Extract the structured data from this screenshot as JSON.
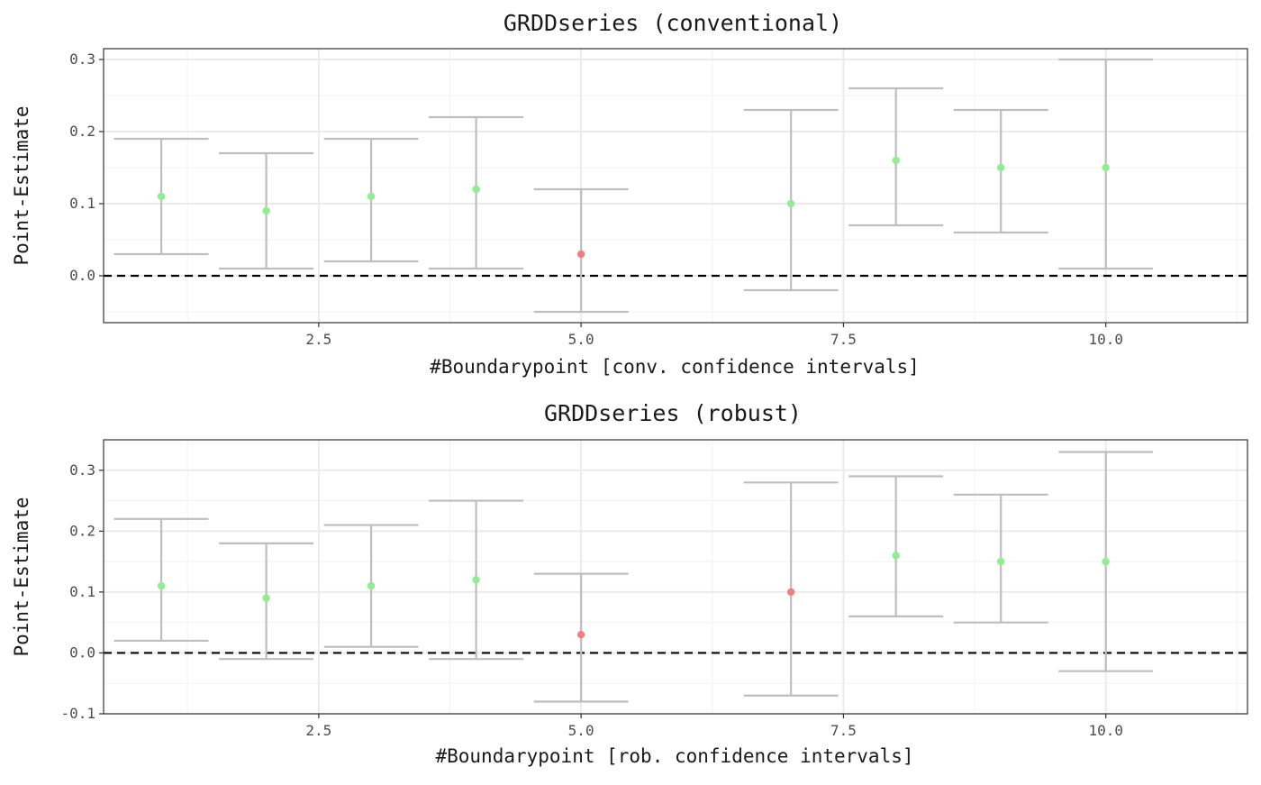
{
  "chart_data": [
    {
      "type": "errorbar",
      "title": "GRDDseries (conventional)",
      "xlabel": "#Boundarypoint [conv. confidence intervals]",
      "ylabel": "Point-Estimate",
      "xlim": [
        0.45,
        11.35
      ],
      "ylim": [
        -0.065,
        0.315
      ],
      "x_ticks": [
        2.5,
        5.0,
        7.5,
        10.0
      ],
      "x_tick_labels": [
        "2.5",
        "5.0",
        "7.5",
        "10.0"
      ],
      "y_ticks": [
        0.0,
        0.1,
        0.2,
        0.3
      ],
      "y_tick_labels": [
        "0.0",
        "0.1",
        "0.2",
        "0.3"
      ],
      "reference_line": 0,
      "grid": true,
      "colors": {
        "significant": "#90ee90",
        "not_significant": "#f08080",
        "errorbar": "#bebebe",
        "reference": "#000000"
      },
      "points": [
        {
          "x": 1,
          "estimate": 0.11,
          "lower": 0.03,
          "upper": 0.19,
          "significant": true
        },
        {
          "x": 2,
          "estimate": 0.09,
          "lower": 0.01,
          "upper": 0.17,
          "significant": true
        },
        {
          "x": 3,
          "estimate": 0.11,
          "lower": 0.02,
          "upper": 0.19,
          "significant": true
        },
        {
          "x": 4,
          "estimate": 0.12,
          "lower": 0.01,
          "upper": 0.22,
          "significant": true
        },
        {
          "x": 5,
          "estimate": 0.03,
          "lower": -0.05,
          "upper": 0.12,
          "significant": false
        },
        {
          "x": 7,
          "estimate": 0.1,
          "lower": -0.02,
          "upper": 0.23,
          "significant": true
        },
        {
          "x": 8,
          "estimate": 0.16,
          "lower": 0.07,
          "upper": 0.26,
          "significant": true
        },
        {
          "x": 9,
          "estimate": 0.15,
          "lower": 0.06,
          "upper": 0.23,
          "significant": true
        },
        {
          "x": 10,
          "estimate": 0.15,
          "lower": 0.01,
          "upper": 0.3,
          "significant": true
        }
      ]
    },
    {
      "type": "errorbar",
      "title": "GRDDseries (robust)",
      "xlabel": "#Boundarypoint [rob. confidence intervals]",
      "ylabel": "Point-Estimate",
      "xlim": [
        0.45,
        11.35
      ],
      "ylim": [
        -0.1,
        0.35
      ],
      "x_ticks": [
        2.5,
        5.0,
        7.5,
        10.0
      ],
      "x_tick_labels": [
        "2.5",
        "5.0",
        "7.5",
        "10.0"
      ],
      "y_ticks": [
        -0.1,
        0.0,
        0.1,
        0.2,
        0.3
      ],
      "y_tick_labels": [
        "-0.1",
        "0.0",
        "0.1",
        "0.2",
        "0.3"
      ],
      "reference_line": 0,
      "grid": true,
      "colors": {
        "significant": "#90ee90",
        "not_significant": "#f08080",
        "errorbar": "#bebebe",
        "reference": "#000000"
      },
      "points": [
        {
          "x": 1,
          "estimate": 0.11,
          "lower": 0.02,
          "upper": 0.22,
          "significant": true
        },
        {
          "x": 2,
          "estimate": 0.09,
          "lower": -0.01,
          "upper": 0.18,
          "significant": true
        },
        {
          "x": 3,
          "estimate": 0.11,
          "lower": 0.01,
          "upper": 0.21,
          "significant": true
        },
        {
          "x": 4,
          "estimate": 0.12,
          "lower": -0.01,
          "upper": 0.25,
          "significant": true
        },
        {
          "x": 5,
          "estimate": 0.03,
          "lower": -0.08,
          "upper": 0.13,
          "significant": false
        },
        {
          "x": 7,
          "estimate": 0.1,
          "lower": -0.07,
          "upper": 0.28,
          "significant": false
        },
        {
          "x": 8,
          "estimate": 0.16,
          "lower": 0.06,
          "upper": 0.29,
          "significant": true
        },
        {
          "x": 9,
          "estimate": 0.15,
          "lower": 0.05,
          "upper": 0.26,
          "significant": true
        },
        {
          "x": 10,
          "estimate": 0.15,
          "lower": -0.03,
          "upper": 0.33,
          "significant": true
        }
      ]
    }
  ]
}
